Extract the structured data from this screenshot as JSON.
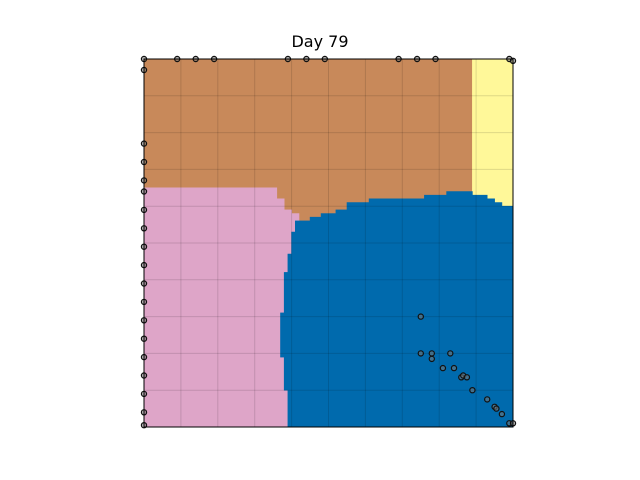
{
  "chart_data": {
    "type": "heatmap",
    "title": "Day 79",
    "xlabel": "",
    "ylabel": "",
    "xlim": [
      0,
      100
    ],
    "ylim": [
      0,
      100
    ],
    "grid": true,
    "axis_ticks": false,
    "region_colors": {
      "brown": "#c8895a",
      "yellow": "#fff899",
      "pink": "#dea5c8",
      "blue": "#006aad"
    },
    "regions": [
      {
        "color": "brown",
        "polygon": [
          [
            0,
            100
          ],
          [
            89,
            100
          ],
          [
            89,
            64
          ],
          [
            82,
            64
          ],
          [
            82,
            63
          ],
          [
            76,
            63
          ],
          [
            76,
            62
          ],
          [
            61,
            62
          ],
          [
            61,
            61
          ],
          [
            55,
            61
          ],
          [
            55,
            59
          ],
          [
            52,
            59
          ],
          [
            52,
            58
          ],
          [
            48,
            58
          ],
          [
            48,
            57
          ],
          [
            45,
            57
          ],
          [
            45,
            56
          ],
          [
            42,
            56
          ],
          [
            42,
            58
          ],
          [
            40,
            58
          ],
          [
            40,
            59
          ],
          [
            38,
            59
          ],
          [
            38,
            62
          ],
          [
            36,
            62
          ],
          [
            36,
            65
          ],
          [
            0,
            65
          ]
        ]
      },
      {
        "color": "yellow",
        "polygon": [
          [
            89,
            100
          ],
          [
            100,
            100
          ],
          [
            100,
            60
          ],
          [
            97,
            60
          ],
          [
            97,
            61
          ],
          [
            95,
            61
          ],
          [
            95,
            62
          ],
          [
            93,
            62
          ],
          [
            93,
            63
          ],
          [
            89,
            63
          ]
        ]
      },
      {
        "color": "pink",
        "polygon": [
          [
            0,
            65
          ],
          [
            36,
            65
          ],
          [
            36,
            62
          ],
          [
            38,
            62
          ],
          [
            38,
            59
          ],
          [
            40,
            59
          ],
          [
            40,
            58
          ],
          [
            42,
            58
          ],
          [
            42,
            56
          ],
          [
            41,
            56
          ],
          [
            41,
            53
          ],
          [
            40,
            53
          ],
          [
            40,
            47
          ],
          [
            39,
            47
          ],
          [
            39,
            42
          ],
          [
            38,
            42
          ],
          [
            38,
            31
          ],
          [
            37,
            31
          ],
          [
            37,
            19
          ],
          [
            38,
            19
          ],
          [
            38,
            10
          ],
          [
            39,
            10
          ],
          [
            39,
            0
          ],
          [
            0,
            0
          ]
        ]
      },
      {
        "color": "blue",
        "polygon": [
          [
            42,
            56
          ],
          [
            45,
            56
          ],
          [
            45,
            57
          ],
          [
            48,
            57
          ],
          [
            48,
            58
          ],
          [
            52,
            58
          ],
          [
            52,
            59
          ],
          [
            55,
            59
          ],
          [
            55,
            61
          ],
          [
            61,
            61
          ],
          [
            61,
            62
          ],
          [
            76,
            62
          ],
          [
            76,
            63
          ],
          [
            82,
            63
          ],
          [
            82,
            64
          ],
          [
            89,
            64
          ],
          [
            89,
            63
          ],
          [
            93,
            63
          ],
          [
            93,
            62
          ],
          [
            95,
            62
          ],
          [
            95,
            61
          ],
          [
            97,
            61
          ],
          [
            97,
            60
          ],
          [
            100,
            60
          ],
          [
            100,
            0
          ],
          [
            39,
            0
          ],
          [
            39,
            10
          ],
          [
            38,
            10
          ],
          [
            38,
            19
          ],
          [
            37,
            19
          ],
          [
            37,
            31
          ],
          [
            38,
            31
          ],
          [
            38,
            42
          ],
          [
            39,
            42
          ],
          [
            39,
            47
          ],
          [
            40,
            47
          ],
          [
            40,
            53
          ],
          [
            41,
            53
          ],
          [
            41,
            56
          ]
        ]
      }
    ],
    "points": [
      [
        0,
        100
      ],
      [
        9,
        100
      ],
      [
        14,
        100
      ],
      [
        19,
        100
      ],
      [
        39,
        100
      ],
      [
        44,
        100
      ],
      [
        49,
        100
      ],
      [
        69,
        100
      ],
      [
        74,
        100
      ],
      [
        79,
        100
      ],
      [
        99,
        100
      ],
      [
        100,
        99.5
      ],
      [
        0,
        97
      ],
      [
        0,
        77
      ],
      [
        0,
        72
      ],
      [
        0,
        67
      ],
      [
        0,
        64
      ],
      [
        0,
        59
      ],
      [
        0,
        54
      ],
      [
        0,
        49
      ],
      [
        0,
        44
      ],
      [
        0,
        39
      ],
      [
        0,
        34
      ],
      [
        0,
        29
      ],
      [
        0,
        24
      ],
      [
        0,
        19
      ],
      [
        0,
        14
      ],
      [
        0,
        9
      ],
      [
        0,
        4
      ],
      [
        0,
        0.5
      ],
      [
        75,
        30
      ],
      [
        75,
        20
      ],
      [
        78,
        20
      ],
      [
        78,
        18.5
      ],
      [
        83,
        20
      ],
      [
        81,
        16
      ],
      [
        84,
        16
      ],
      [
        86,
        13.5
      ],
      [
        86.5,
        14
      ],
      [
        87.5,
        13.5
      ],
      [
        89,
        10
      ],
      [
        93,
        7.5
      ],
      [
        95,
        5.5
      ],
      [
        95.5,
        5
      ],
      [
        97,
        3.5
      ],
      [
        99,
        1
      ],
      [
        100,
        1
      ]
    ]
  }
}
